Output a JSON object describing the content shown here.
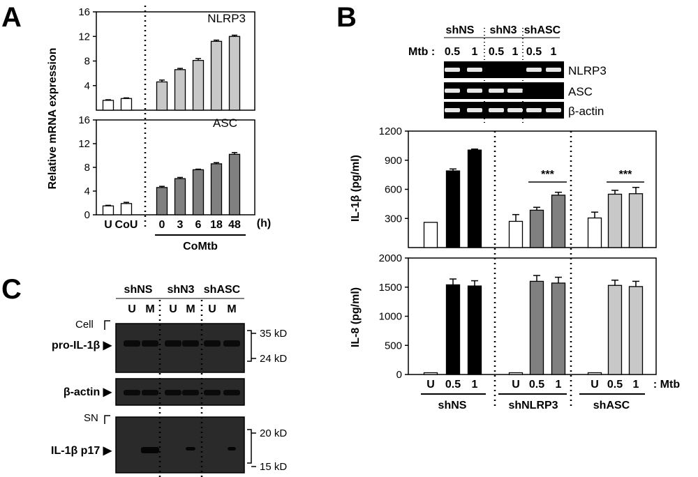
{
  "panels": {
    "a": "A",
    "b": "B",
    "c": "C"
  },
  "panel_a": {
    "ylabel": "Relative mRNA expression",
    "top_title": "NLRP3",
    "bottom_title": "ASC",
    "x_unit": "(h)",
    "group_label": "CoMtb",
    "y_ticks": [
      "0",
      "4",
      "8",
      "12",
      "16"
    ]
  },
  "panel_b": {
    "lanes_groups": [
      "shNS",
      "shN3",
      "shASC"
    ],
    "mtb_prefix": "Mtb :",
    "lane_doses": [
      "0.5",
      "1",
      "0.5",
      "1",
      "0.5",
      "1"
    ],
    "band_labels": [
      "NLRP3",
      "ASC",
      "β-actin"
    ],
    "y1_label": "IL-1β (pg/ml)",
    "y2_label": "IL-8 (pg/ml)",
    "y1_ticks": [
      "0",
      "300",
      "600",
      "900",
      "1200"
    ],
    "y2_ticks": [
      "0",
      "500",
      "1000",
      "1500",
      "2000"
    ],
    "sig": "***",
    "x_suffix": ": Mtb",
    "groups": [
      "shNS",
      "shNLRP3",
      "shASC"
    ],
    "x_cats": [
      "U",
      "0.5",
      "1"
    ]
  },
  "panel_c": {
    "groups": [
      "shNS",
      "shN3",
      "shASC"
    ],
    "lanes": [
      "U",
      "M",
      "U",
      "M",
      "U",
      "M"
    ],
    "cell_label": "Cell",
    "sn_label": "SN",
    "rows": [
      "pro-IL-1β ▶",
      "β-actin ▶",
      "IL-1β p17 ▶"
    ],
    "mw": [
      "35 kD",
      "24 kD",
      "20 kD",
      "15 kD"
    ]
  },
  "colors": {
    "white": "#ffffff",
    "black": "#000000",
    "dark_gray": "#808080",
    "light_gray": "#c8c8c8",
    "blot": "#2a2a2a"
  },
  "chart_data": [
    {
      "type": "bar",
      "title": "NLRP3",
      "ylabel": "Relative mRNA expression",
      "categories": [
        "U",
        "CoU",
        "0",
        "3",
        "6",
        "18",
        "48"
      ],
      "values": [
        1.6,
        1.9,
        4.6,
        6.6,
        8.1,
        11.2,
        12.0
      ],
      "errors": [
        0.1,
        0.1,
        0.3,
        0.2,
        0.3,
        0.2,
        0.2
      ],
      "ylim": [
        0,
        16
      ]
    },
    {
      "type": "bar",
      "title": "ASC",
      "ylabel": "Relative mRNA expression",
      "categories": [
        "U",
        "CoU",
        "0",
        "3",
        "6",
        "18",
        "48"
      ],
      "values": [
        1.5,
        1.9,
        4.6,
        6.1,
        7.6,
        8.6,
        10.2
      ],
      "errors": [
        0.1,
        0.2,
        0.2,
        0.2,
        0.1,
        0.2,
        0.3
      ],
      "ylim": [
        0,
        16
      ]
    },
    {
      "type": "bar",
      "ylabel": "IL-1β (pg/ml)",
      "categories": [
        "U",
        "0.5",
        "1",
        "U",
        "0.5",
        "1",
        "U",
        "0.5",
        "1"
      ],
      "groups": [
        "shNS",
        "shNLRP3",
        "shASC"
      ],
      "values": [
        260,
        790,
        1005,
        270,
        385,
        540,
        305,
        550,
        555
      ],
      "errors": [
        0,
        20,
        10,
        70,
        30,
        30,
        60,
        40,
        65
      ],
      "ylim": [
        0,
        1200
      ]
    },
    {
      "type": "bar",
      "ylabel": "IL-8 (pg/ml)",
      "categories": [
        "U",
        "0.5",
        "1",
        "U",
        "0.5",
        "1",
        "U",
        "0.5",
        "1"
      ],
      "groups": [
        "shNS",
        "shNLRP3",
        "shASC"
      ],
      "values": [
        30,
        1540,
        1520,
        30,
        1600,
        1570,
        30,
        1530,
        1510
      ],
      "errors": [
        0,
        100,
        90,
        0,
        100,
        100,
        0,
        90,
        90
      ],
      "ylim": [
        0,
        2000
      ]
    }
  ]
}
